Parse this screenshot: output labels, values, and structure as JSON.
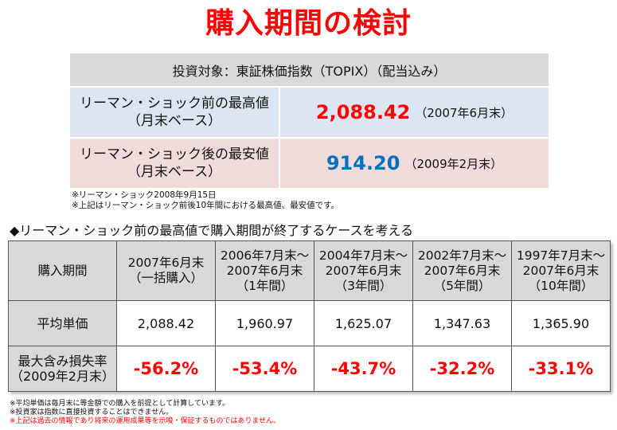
{
  "title": "購入期間の検討",
  "summary": {
    "header": "投資対象：東証株価指数（TOPIX）（配当込み）",
    "rows": [
      {
        "label_line1": "リーマン・ショック前の最高値",
        "label_line2": "（月末ベース）",
        "value": "2,088.42",
        "date": "（2007年6月末）",
        "value_color": "#ff0000"
      },
      {
        "label_line1": "リーマン・ショック後の最安値",
        "label_line2": "（月末ベース）",
        "value": "914.20",
        "date": "（2009年2月末）",
        "value_color": "#0070c0"
      }
    ],
    "notes": [
      "※リーマン・ショック2008年9月15日",
      "※上記はリーマン・ショック前後10年間における最高値、最安値です。"
    ]
  },
  "section_heading": "◆リーマン・ショック前の最高値で購入期間が終了するケースを考える",
  "table": {
    "row_headers": {
      "period": "購入期間",
      "avg": "平均単価",
      "loss_line1": "最大含み損失率",
      "loss_line2": "（2009年2月末）"
    },
    "columns": [
      {
        "l1": "2007年6月末",
        "l2": "（一括購入）",
        "l3": "",
        "avg": "2,088.42",
        "loss": "-56.2%"
      },
      {
        "l1": "2006年7月末～",
        "l2": "2007年6月末",
        "l3": "（1年間）",
        "avg": "1,960.97",
        "loss": "-53.4%"
      },
      {
        "l1": "2004年7月末～",
        "l2": "2007年6月末",
        "l3": "（3年間）",
        "avg": "1,625.07",
        "loss": "-43.7%"
      },
      {
        "l1": "2002年7月末～",
        "l2": "2007年6月末",
        "l3": "（5年間）",
        "avg": "1,347.63",
        "loss": "-32.2%"
      },
      {
        "l1": "1997年7月末～",
        "l2": "2007年6月末",
        "l3": "（10年間）",
        "avg": "1,365.90",
        "loss": "-33.1%"
      }
    ]
  },
  "footnotes": [
    "※平均単価は毎月末に等金額での購入を前提として計算しています。",
    "※投資家は指数に直接投資することはできません。",
    "※上記は過去の情報であり将来の運用成果等を示唆・保証するものではありません。"
  ],
  "colors": {
    "accent_red": "#ff0000",
    "accent_blue": "#0070c0",
    "header_gray": "#d9d9d9",
    "row_blue": "#dce6f2",
    "row_pink": "#f2dcdb"
  }
}
